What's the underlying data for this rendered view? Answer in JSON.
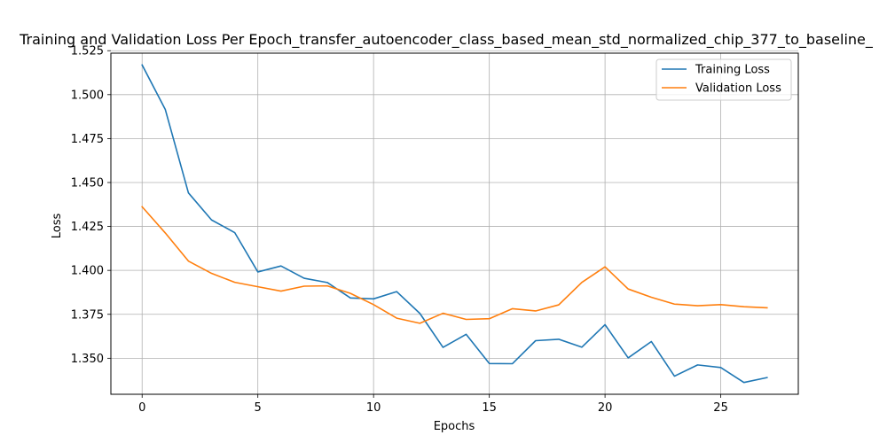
{
  "chart_data": {
    "type": "line",
    "title": "Training and Validation Loss Per Epoch_transfer_autoencoder_class_based_mean_std_normalized_chip_377_to_baseline_",
    "xlabel": "Epochs",
    "ylabel": "Loss",
    "xlim": [
      -1.35,
      28.35
    ],
    "ylim": [
      1.3295,
      1.5236
    ],
    "x_ticks": [
      0,
      5,
      10,
      15,
      20,
      25
    ],
    "x_tick_labels": [
      "0",
      "5",
      "10",
      "15",
      "20",
      "25"
    ],
    "y_ticks": [
      1.35,
      1.375,
      1.4,
      1.425,
      1.45,
      1.475,
      1.5,
      1.525
    ],
    "y_tick_labels": [
      "1.350",
      "1.375",
      "1.400",
      "1.425",
      "1.450",
      "1.475",
      "1.500",
      "1.525"
    ],
    "grid": true,
    "legend_position": "upper right",
    "x": [
      0,
      1,
      2,
      3,
      4,
      5,
      6,
      7,
      8,
      9,
      10,
      11,
      12,
      13,
      14,
      15,
      16,
      17,
      18,
      19,
      20,
      21,
      22,
      23,
      24,
      25,
      26,
      27
    ],
    "series": [
      {
        "name": "Training Loss",
        "color": "#1f77b4",
        "values": [
          1.5169,
          1.4916,
          1.4441,
          1.4287,
          1.4215,
          1.3991,
          1.4025,
          1.3955,
          1.3931,
          1.3843,
          1.3838,
          1.3879,
          1.3755,
          1.3562,
          1.3636,
          1.347,
          1.3469,
          1.36,
          1.3608,
          1.3563,
          1.3691,
          1.3502,
          1.3595,
          1.3398,
          1.3462,
          1.3447,
          1.3362,
          1.339
        ]
      },
      {
        "name": "Validation Loss",
        "color": "#ff7f0e",
        "values": [
          1.4362,
          1.4213,
          1.4053,
          1.3983,
          1.3932,
          1.3907,
          1.3882,
          1.391,
          1.3912,
          1.3869,
          1.3805,
          1.3728,
          1.3699,
          1.3756,
          1.3721,
          1.3725,
          1.3782,
          1.3769,
          1.3804,
          1.3932,
          1.402,
          1.3894,
          1.3847,
          1.3808,
          1.3799,
          1.3805,
          1.3793,
          1.3787
        ]
      }
    ]
  }
}
